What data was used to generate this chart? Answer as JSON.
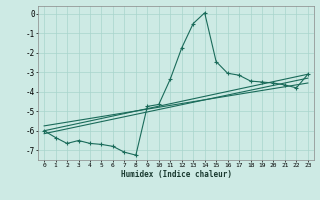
{
  "xlabel": "Humidex (Indice chaleur)",
  "ylabel": "",
  "xlim": [
    -0.5,
    23.5
  ],
  "ylim": [
    -7.5,
    0.4
  ],
  "yticks": [
    0,
    -1,
    -2,
    -3,
    -4,
    -5,
    -6,
    -7
  ],
  "xticks": [
    0,
    1,
    2,
    3,
    4,
    5,
    6,
    7,
    8,
    9,
    10,
    11,
    12,
    13,
    14,
    15,
    16,
    17,
    18,
    19,
    20,
    21,
    22,
    23
  ],
  "bg_color": "#cdeae4",
  "grid_color": "#a8d5cc",
  "line_color": "#1a6b5a",
  "wavy_x": [
    0,
    1,
    2,
    3,
    4,
    5,
    6,
    7,
    8,
    9,
    10,
    11,
    12,
    13,
    14,
    15,
    16,
    17,
    18,
    19,
    20,
    21,
    22,
    23
  ],
  "wavy_y": [
    -6.0,
    -6.35,
    -6.65,
    -6.5,
    -6.65,
    -6.7,
    -6.8,
    -7.1,
    -7.25,
    -4.75,
    -4.65,
    -3.35,
    -1.75,
    -0.5,
    0.05,
    -2.45,
    -3.05,
    -3.15,
    -3.45,
    -3.5,
    -3.55,
    -3.65,
    -3.8,
    -3.1
  ],
  "line1_x": [
    0,
    23
  ],
  "line1_y": [
    -6.0,
    -3.1
  ],
  "line2_x": [
    0,
    23
  ],
  "line2_y": [
    -6.15,
    -3.3
  ],
  "line3_x": [
    0,
    23
  ],
  "line3_y": [
    -5.75,
    -3.55
  ],
  "figsize": [
    3.2,
    2.0
  ],
  "dpi": 100
}
